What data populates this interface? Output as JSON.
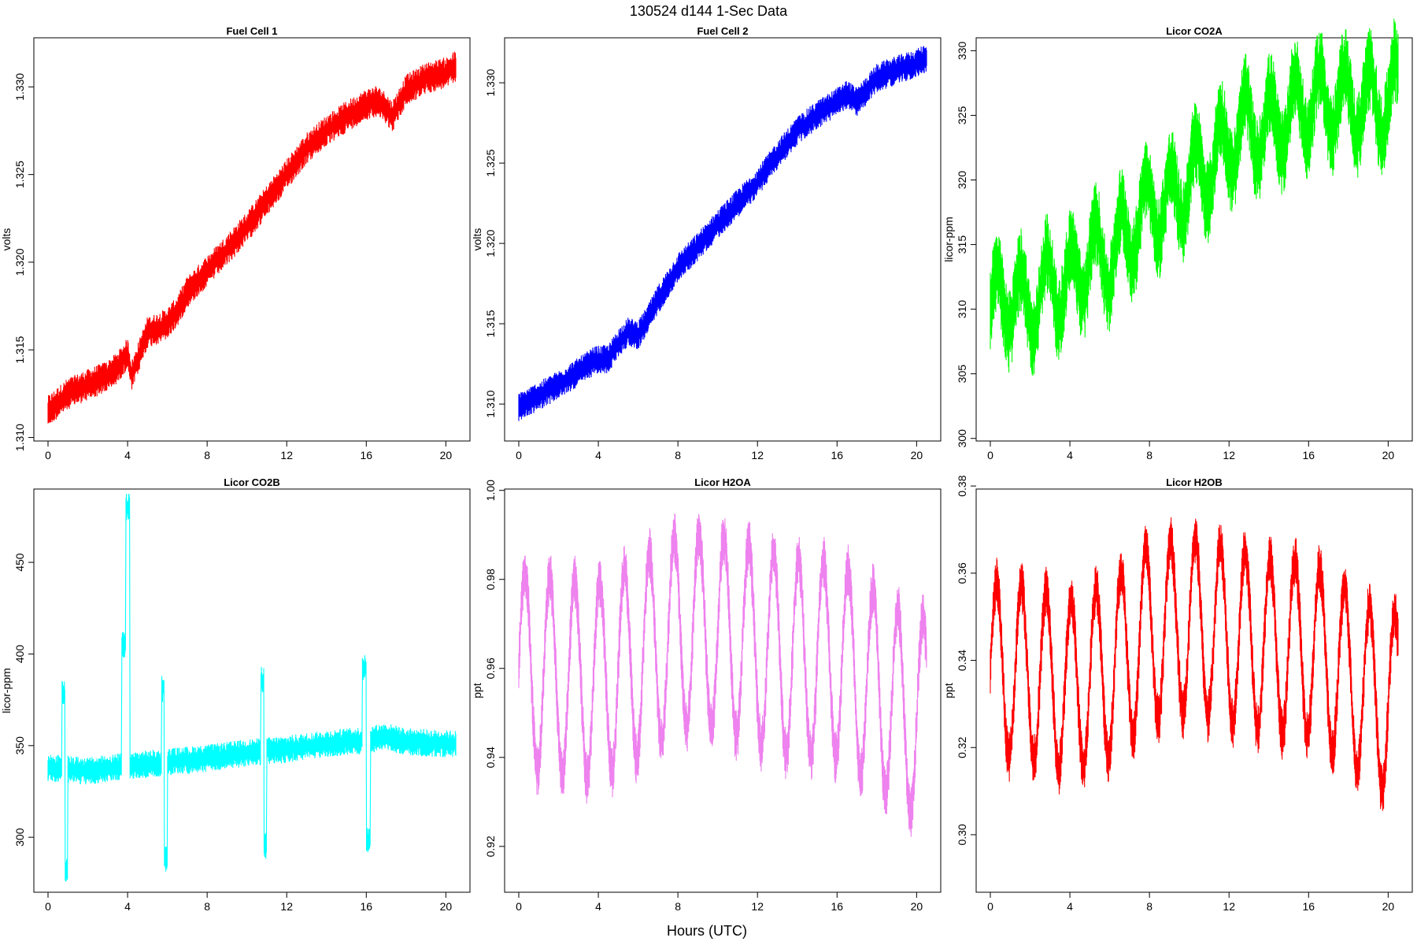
{
  "figure": {
    "title": "130524   d144   1-Sec Data",
    "xlabel": "Hours (UTC)"
  },
  "chart_data": [
    {
      "type": "line",
      "title": "Fuel Cell 1",
      "ylabel": "volts",
      "color": "#ff0000",
      "xlim": [
        0,
        20.5
      ],
      "ylim": [
        1.3098,
        1.3328
      ],
      "xticks": [
        0,
        4,
        8,
        12,
        16,
        20
      ],
      "yticks": [
        1.31,
        1.315,
        1.32,
        1.325,
        1.33
      ],
      "ytick_labels": [
        "1.310",
        "1.315",
        "1.320",
        "1.325",
        "1.330"
      ],
      "series": [
        {
          "x": [
            0,
            1,
            2,
            3,
            3.5,
            4,
            4.2,
            5,
            5.5,
            6,
            6.5,
            7,
            8,
            9,
            10,
            11,
            12,
            13,
            14,
            15,
            16,
            16.5,
            17,
            17.3,
            18,
            19,
            20,
            20.5
          ],
          "y": [
            1.3115,
            1.3125,
            1.313,
            1.3135,
            1.314,
            1.3148,
            1.3135,
            1.316,
            1.3162,
            1.3165,
            1.3172,
            1.3183,
            1.3195,
            1.3207,
            1.322,
            1.3235,
            1.325,
            1.3265,
            1.3275,
            1.3283,
            1.329,
            1.3292,
            1.3288,
            1.3283,
            1.3298,
            1.3305,
            1.3308,
            1.3312
          ],
          "band": 0.0006
        }
      ]
    },
    {
      "type": "line",
      "title": "Fuel Cell 2",
      "ylabel": "volts",
      "color": "#0000ff",
      "xlim": [
        0,
        20.5
      ],
      "ylim": [
        1.3077,
        1.3328
      ],
      "xticks": [
        0,
        4,
        8,
        12,
        16,
        20
      ],
      "yticks": [
        1.31,
        1.315,
        1.32,
        1.325,
        1.33
      ],
      "ytick_labels": [
        "1.310",
        "1.315",
        "1.320",
        "1.325",
        "1.330"
      ],
      "series": [
        {
          "x": [
            0,
            1,
            2,
            3,
            3.8,
            4.5,
            5,
            5.5,
            6,
            6.5,
            7,
            8,
            9,
            10,
            11,
            12,
            13,
            14,
            15,
            16,
            16.5,
            17,
            18,
            19,
            20,
            20.5
          ],
          "y": [
            1.3098,
            1.3105,
            1.3112,
            1.312,
            1.3127,
            1.3128,
            1.3138,
            1.3145,
            1.3143,
            1.3153,
            1.3165,
            1.3185,
            1.3198,
            1.3212,
            1.3225,
            1.3238,
            1.3255,
            1.327,
            1.328,
            1.3288,
            1.3293,
            1.3288,
            1.3303,
            1.3308,
            1.3312,
            1.3316
          ],
          "band": 0.0006
        }
      ]
    },
    {
      "type": "line",
      "title": "Licor CO2A",
      "ylabel": "licor-ppm",
      "color": "#00ff00",
      "xlim": [
        0,
        20.5
      ],
      "ylim": [
        299.8,
        331
      ],
      "xticks": [
        0,
        4,
        8,
        12,
        16,
        20
      ],
      "yticks": [
        300,
        305,
        310,
        315,
        320,
        325,
        330
      ],
      "ytick_labels": [
        "300",
        "305",
        "310",
        "315",
        "320",
        "325",
        "330"
      ],
      "series": [
        {
          "x": [
            0,
            1,
            2,
            3,
            4,
            5,
            6,
            7,
            8,
            9,
            10,
            11,
            12,
            13,
            14,
            15,
            16,
            17,
            18,
            19,
            20,
            20.5
          ],
          "y": [
            310,
            311,
            310,
            312,
            312,
            314,
            314,
            316,
            318,
            318,
            320,
            321,
            323,
            324,
            324,
            325,
            326,
            326,
            326,
            326,
            326,
            327
          ],
          "band": 2.2,
          "osc_period": 1.25
        }
      ]
    },
    {
      "type": "line",
      "title": "Licor CO2B",
      "ylabel": "licor-ppm",
      "color": "#00ffff",
      "xlim": [
        0,
        20.5
      ],
      "ylim": [
        270,
        490
      ],
      "xticks": [
        0,
        4,
        8,
        12,
        16,
        20
      ],
      "yticks": [
        300,
        350,
        400,
        450
      ],
      "ytick_labels": [
        "300",
        "350",
        "400",
        "450"
      ],
      "series": [
        {
          "x": [
            0,
            2,
            4,
            6,
            8,
            10,
            12,
            14,
            16,
            17,
            18,
            20,
            20.5
          ],
          "y": [
            338,
            336,
            339,
            341,
            343,
            346,
            348,
            351,
            353,
            355,
            352,
            351,
            351
          ],
          "band": 5,
          "events": [
            [
              0.7,
              1.0,
              378,
              281
            ],
            [
              3.7,
              4.1,
              405,
              480
            ],
            [
              5.7,
              6.0,
              381,
              288
            ],
            [
              10.7,
              11.0,
              386,
              295
            ],
            [
              15.8,
              16.2,
              392,
              298
            ]
          ]
        }
      ]
    },
    {
      "type": "line",
      "title": "Licor H2OA",
      "ylabel": "ppt",
      "color": "#ee82ee",
      "xlim": [
        0,
        20.5
      ],
      "ylim": [
        0.9097,
        1.0003
      ],
      "xticks": [
        0,
        4,
        8,
        12,
        16,
        20
      ],
      "yticks": [
        0.92,
        0.94,
        0.96,
        0.98,
        1.0
      ],
      "ytick_labels": [
        "0.92",
        "0.94",
        "0.96",
        "0.98",
        "1.00"
      ],
      "series": [
        {
          "x": [
            0,
            2,
            4,
            6,
            8,
            10,
            12,
            14,
            16,
            18,
            20,
            20.5
          ],
          "y": [
            0.96,
            0.958,
            0.957,
            0.962,
            0.968,
            0.968,
            0.965,
            0.962,
            0.962,
            0.955,
            0.948,
            0.95
          ],
          "band": 0.004,
          "osc_period": 1.25,
          "osc_amp": 0.022
        }
      ]
    },
    {
      "type": "line",
      "title": "Licor H2OB",
      "ylabel": "ppt",
      "color": "#ff0000",
      "xlim": [
        0,
        20.5
      ],
      "ylim": [
        0.2868,
        0.3793
      ],
      "xticks": [
        0,
        4,
        8,
        12,
        16,
        20
      ],
      "yticks": [
        0.3,
        0.32,
        0.34,
        0.36,
        0.38
      ],
      "ytick_labels": [
        "0.30",
        "0.32",
        "0.34",
        "0.36",
        "0.38"
      ],
      "series": [
        {
          "x": [
            0,
            2,
            4,
            6,
            8,
            10,
            12,
            14,
            16,
            18,
            20,
            20.5
          ],
          "y": [
            0.338,
            0.337,
            0.334,
            0.338,
            0.346,
            0.348,
            0.346,
            0.343,
            0.343,
            0.336,
            0.329,
            0.332
          ],
          "band": 0.004,
          "osc_period": 1.25,
          "osc_amp": 0.02
        }
      ]
    }
  ]
}
